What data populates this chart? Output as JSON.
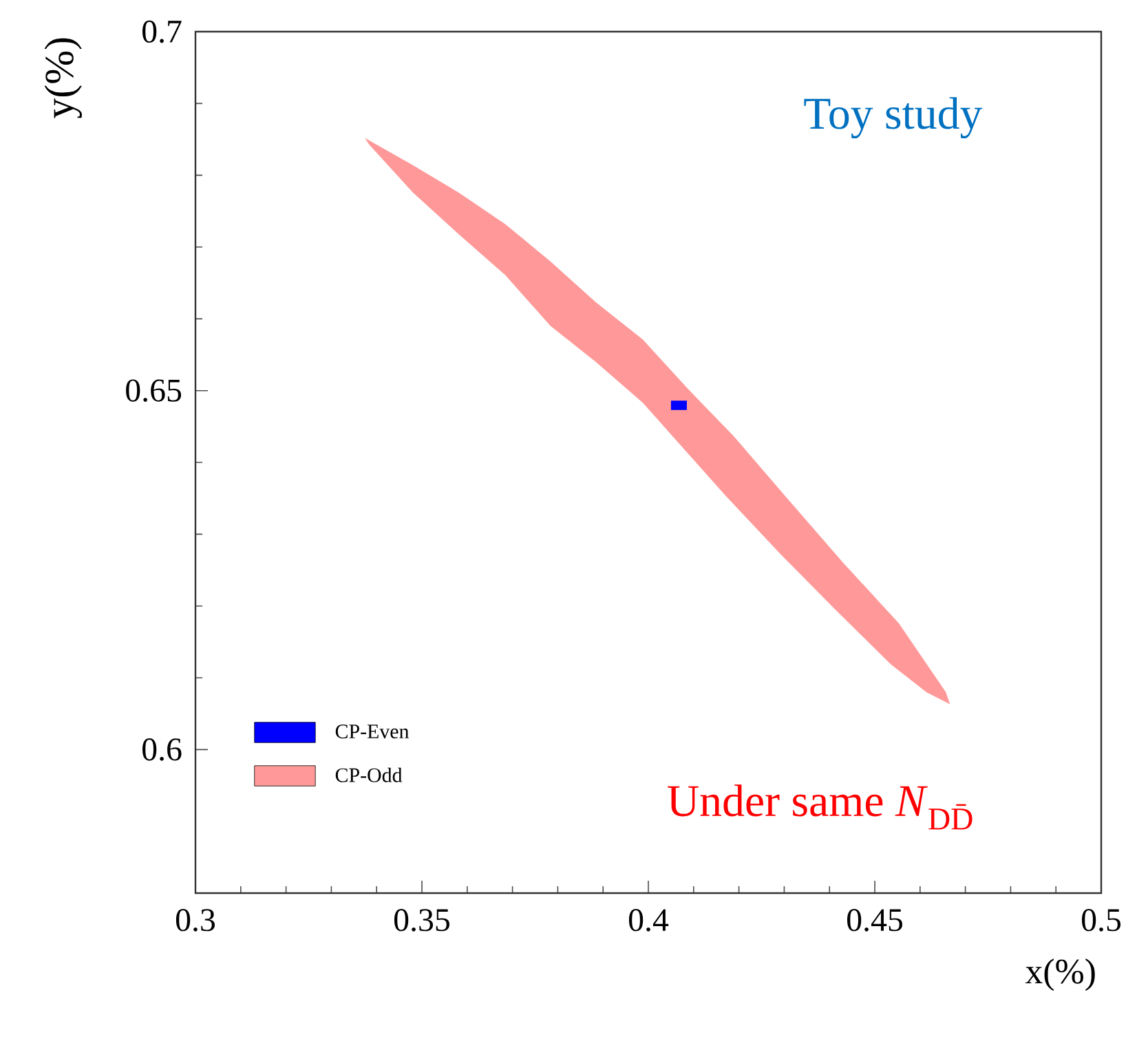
{
  "chart_data": {
    "type": "area",
    "xlabel": "x(%)",
    "ylabel": "y(%)",
    "xlim": [
      0.3,
      0.5
    ],
    "xticks": [
      0.3,
      0.35,
      0.4,
      0.45,
      0.5
    ],
    "ylim": [
      0.58,
      0.7
    ],
    "yticks": [
      0.6,
      0.65,
      0.7
    ],
    "legend": "bottom left",
    "annotations": [
      "Toy study",
      "Under same *N*$_{DD̄}$"
    ],
    "series": [
      {
        "name": "CP-Even",
        "color": "#0000ff",
        "x": [
          0.405,
          0.4085,
          0.4085,
          0.405
        ],
        "values": [
          0.6486,
          0.6486,
          0.6473,
          0.6473
        ]
      },
      {
        "name": "CP-Odd",
        "color": "#ff9999",
        "x": [
          0.3374,
          0.348,
          0.3581,
          0.3684,
          0.3784,
          0.3884,
          0.3988,
          0.4088,
          0.4188,
          0.4301,
          0.4432,
          0.4553,
          0.4657,
          0.4666,
          0.4614,
          0.4535,
          0.4413,
          0.4292,
          0.417,
          0.4088,
          0.3988,
          0.3884,
          0.3784,
          0.3684,
          0.3581,
          0.348,
          0.3383
        ],
        "values": [
          0.6852,
          0.6814,
          0.6776,
          0.6732,
          0.668,
          0.6623,
          0.6571,
          0.6502,
          0.6437,
          0.6354,
          0.6259,
          0.6176,
          0.608,
          0.6063,
          0.608,
          0.6119,
          0.6195,
          0.6272,
          0.6354,
          0.6412,
          0.6483,
          0.654,
          0.659,
          0.6661,
          0.6718,
          0.6776,
          0.6843
        ]
      }
    ]
  }
}
